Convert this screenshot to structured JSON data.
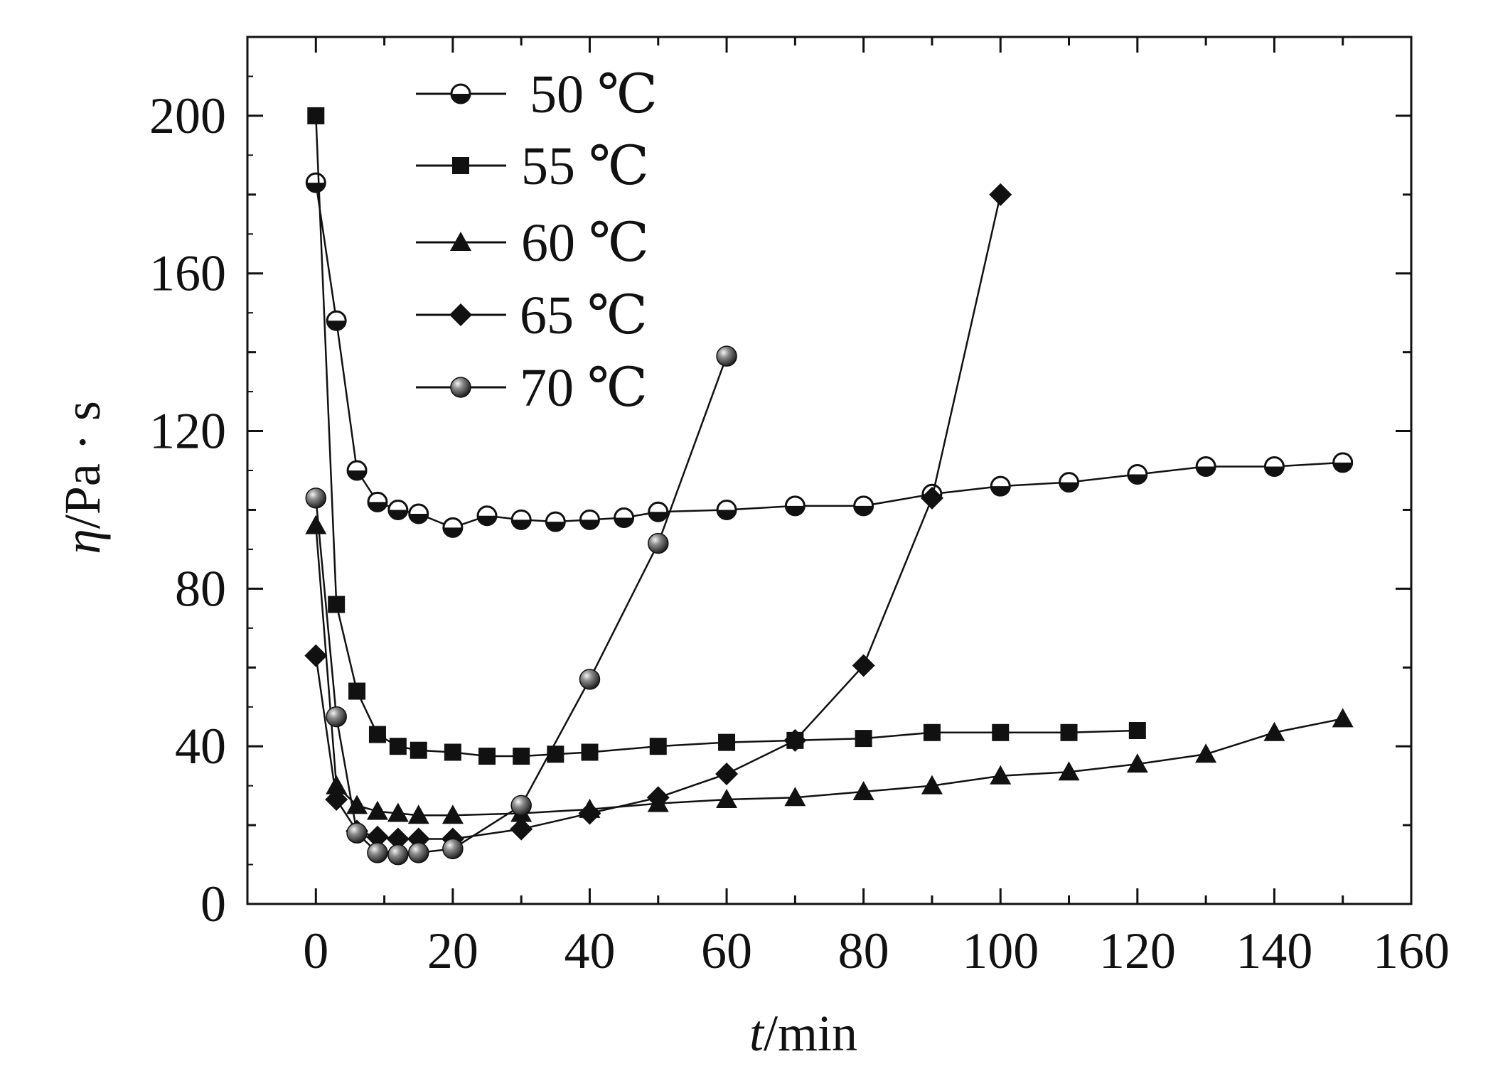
{
  "chart_data": {
    "type": "line",
    "title": "",
    "xlabel_italic": "t",
    "xlabel_rest": "/min",
    "ylabel_italic": "η",
    "ylabel_rest": "/Pa · s",
    "xlim": [
      -10,
      160
    ],
    "ylim": [
      0,
      220
    ],
    "xticks": [
      0,
      20,
      40,
      60,
      80,
      100,
      120,
      140,
      160
    ],
    "yticks": [
      0,
      40,
      80,
      120,
      160,
      200
    ],
    "legend_position": "top-left",
    "grid": false,
    "series": [
      {
        "name": "50 ℃",
        "marker": "half-circle",
        "x": [
          0,
          3,
          6,
          9,
          12,
          15,
          20,
          25,
          30,
          35,
          40,
          45,
          50,
          60,
          70,
          80,
          90,
          100,
          110,
          120,
          130,
          140,
          150
        ],
        "y": [
          183,
          148,
          110,
          102,
          100,
          99,
          95.5,
          98.5,
          97.5,
          97,
          97.5,
          98,
          99.5,
          100,
          101,
          101,
          104,
          106,
          107,
          109,
          111,
          111,
          112
        ]
      },
      {
        "name": "55 ℃",
        "marker": "square",
        "x": [
          0,
          3,
          6,
          9,
          12,
          15,
          20,
          25,
          30,
          35,
          40,
          50,
          60,
          70,
          80,
          90,
          100,
          110,
          120
        ],
        "y": [
          200,
          76,
          54,
          43,
          40,
          39,
          38.5,
          37.5,
          37.5,
          38,
          38.5,
          40,
          41,
          41.5,
          42,
          43.5,
          43.5,
          43.5,
          44
        ]
      },
      {
        "name": "60 ℃",
        "marker": "triangle",
        "x": [
          0,
          3,
          6,
          9,
          12,
          15,
          20,
          30,
          40,
          50,
          60,
          70,
          80,
          90,
          100,
          110,
          120,
          130,
          140,
          150
        ],
        "y": [
          96,
          30,
          25,
          23.5,
          23,
          22.5,
          22.5,
          23,
          24,
          25.5,
          26.5,
          27,
          28.5,
          30,
          32.5,
          33.5,
          35.5,
          38,
          43.5,
          47
        ]
      },
      {
        "name": "65 ℃",
        "marker": "diamond",
        "x": [
          0,
          3,
          6,
          9,
          12,
          15,
          20,
          30,
          40,
          50,
          60,
          70,
          80,
          90,
          100
        ],
        "y": [
          63,
          26.5,
          18.5,
          17,
          16.5,
          16.5,
          16.5,
          19,
          23,
          27,
          33,
          41.5,
          60.5,
          103,
          180
        ]
      },
      {
        "name": "70 ℃",
        "marker": "sphere",
        "x": [
          0,
          3,
          6,
          9,
          12,
          15,
          20,
          30,
          40,
          50,
          60
        ],
        "y": [
          103,
          47.5,
          18,
          13,
          12.5,
          13,
          14,
          25,
          57,
          91.5,
          139
        ]
      }
    ]
  }
}
